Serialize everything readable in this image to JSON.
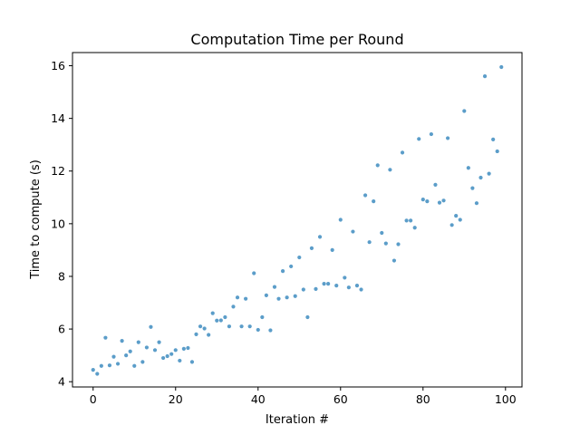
{
  "chart_data": {
    "type": "scatter",
    "title": "Computation Time per Round",
    "xlabel": "Iteration #",
    "ylabel": "Time to compute (s)",
    "xlim": [
      -5,
      104
    ],
    "ylim": [
      3.8,
      16.5
    ],
    "xticks": [
      0,
      20,
      40,
      60,
      80,
      100
    ],
    "yticks": [
      4,
      6,
      8,
      10,
      12,
      14,
      16
    ],
    "grid": false,
    "color": "#5b9dc9",
    "series": [
      {
        "x": [
          0,
          1,
          2,
          3,
          4,
          5,
          6,
          7,
          8,
          9,
          10,
          11,
          12,
          13,
          14,
          15,
          16,
          17,
          18,
          19,
          20,
          21,
          22,
          23,
          24,
          25,
          26,
          27,
          28,
          29,
          30,
          31,
          32,
          33,
          34,
          35,
          36,
          37,
          38,
          39,
          40,
          41,
          42,
          43,
          44,
          45,
          46,
          47,
          48,
          49,
          50,
          51,
          52,
          53,
          54,
          55,
          56,
          57,
          58,
          59,
          60,
          61,
          62,
          63,
          64,
          65,
          66,
          67,
          68,
          69,
          70,
          71,
          72,
          73,
          74,
          75,
          76,
          77,
          78,
          79,
          80,
          81,
          82,
          83,
          84,
          85,
          86,
          87,
          88,
          89,
          90,
          91,
          92,
          93,
          94,
          95,
          96,
          97,
          98,
          99
        ],
        "y": [
          4.45,
          4.3,
          4.6,
          5.67,
          4.62,
          4.95,
          4.68,
          5.55,
          5.0,
          5.15,
          4.6,
          5.5,
          4.75,
          5.3,
          6.08,
          5.2,
          5.5,
          4.9,
          4.97,
          5.05,
          5.2,
          4.8,
          5.25,
          5.28,
          4.75,
          5.8,
          6.1,
          6.02,
          5.78,
          6.6,
          6.32,
          6.33,
          6.45,
          6.1,
          6.85,
          7.2,
          6.1,
          7.15,
          6.1,
          8.12,
          5.97,
          6.45,
          7.28,
          5.95,
          7.6,
          7.15,
          8.2,
          7.2,
          8.38,
          7.25,
          8.72,
          7.5,
          6.45,
          9.07,
          7.52,
          9.5,
          7.72,
          7.72,
          9.0,
          7.65,
          10.15,
          7.95,
          7.58,
          9.7,
          7.65,
          7.5,
          11.08,
          9.3,
          10.85,
          12.22,
          9.65,
          9.25,
          12.05,
          8.6,
          9.22,
          12.7,
          10.12,
          10.12,
          9.85,
          13.22,
          10.92,
          10.85,
          13.4,
          11.48,
          10.8,
          10.88,
          13.25,
          9.95,
          10.3,
          10.15,
          14.28,
          12.12,
          11.35,
          10.78,
          11.75,
          15.6,
          11.9,
          13.2,
          12.75,
          15.95
        ]
      }
    ]
  }
}
